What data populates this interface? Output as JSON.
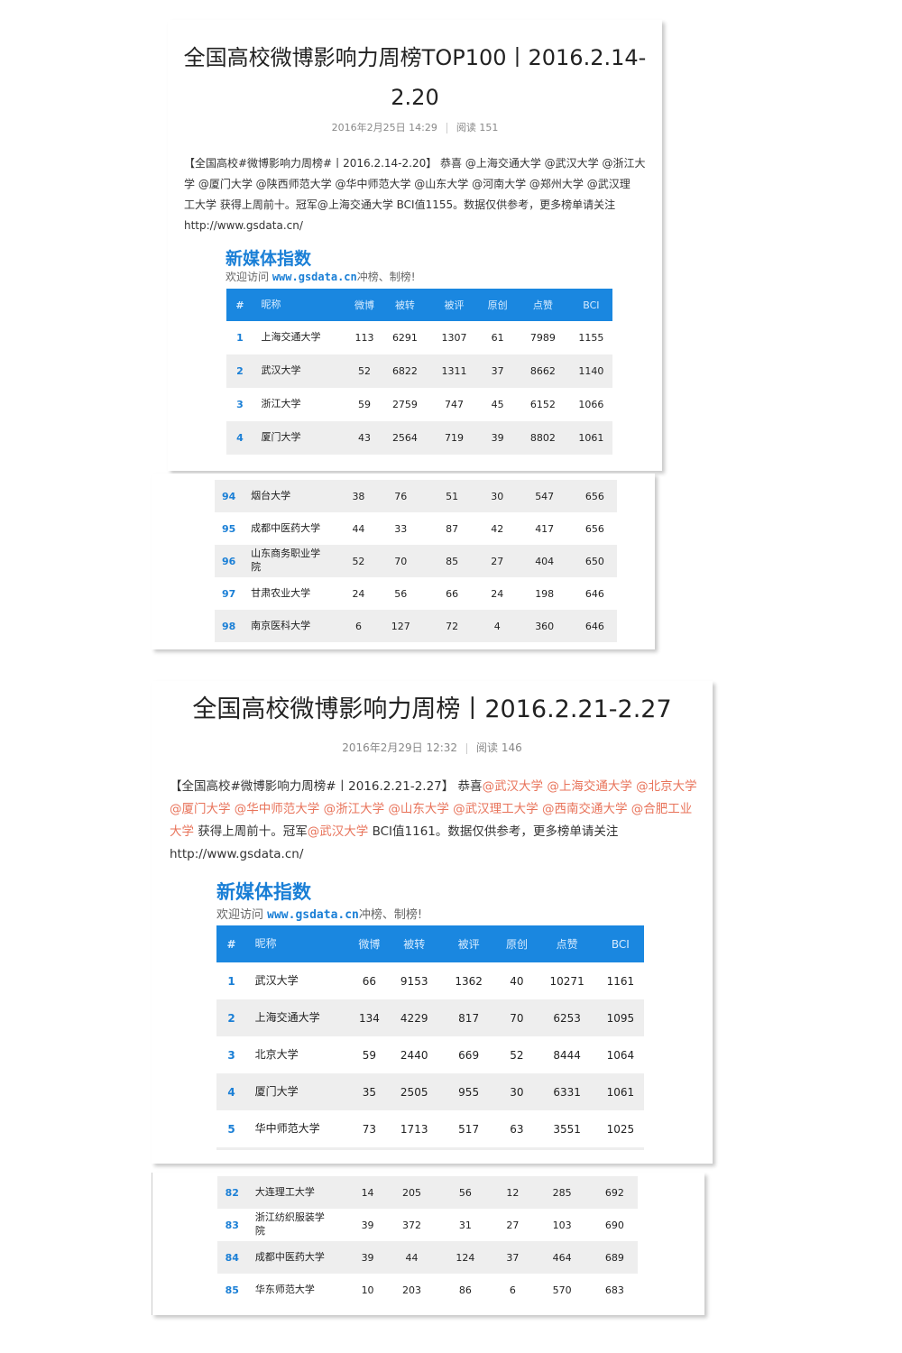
{
  "columns": [
    "#",
    "昵称",
    "微博",
    "被转",
    "被评",
    "原创",
    "点赞",
    "BCI"
  ],
  "post1": {
    "title_line1": "全国高校微博影响力周榜TOP100丨2016.2.14-",
    "title_line2": "2.20",
    "date": "2016年2月25日 14:29",
    "reads": "阅读 151",
    "para_lines": [
      "【全国高校#微博影响力周榜#丨2016.2.14-2.20】 恭喜 @上海交通大学 @武汉大学  @浙江大",
      "学 @厦门大学 @陕西师范大学 @华中师范大学 @山东大学 @河南大学 @郑州大学 @武汉理",
      "工大学 获得上周前十。冠军@上海交通大学 BCI值1155。数据仅供参考，更多榜单请关注",
      "http://www.gsdata.cn/"
    ],
    "logo": "新媒体指数",
    "sub_prefix": "欢迎访问 ",
    "sub_url": "www.gsdata.cn",
    "sub_suffix": "冲榜、制榜!",
    "rows": [
      [
        "1",
        "上海交通大学",
        "113",
        "6291",
        "1307",
        "61",
        "7989",
        "1155"
      ],
      [
        "2",
        "武汉大学",
        "52",
        "6822",
        "1311",
        "37",
        "8662",
        "1140"
      ],
      [
        "3",
        "浙江大学",
        "59",
        "2759",
        "747",
        "45",
        "6152",
        "1066"
      ],
      [
        "4",
        "厦门大学",
        "43",
        "2564",
        "719",
        "39",
        "8802",
        "1061"
      ]
    ],
    "tail_rows": [
      [
        "94",
        "烟台大学",
        "38",
        "76",
        "51",
        "30",
        "547",
        "656"
      ],
      [
        "95",
        "成都中医药大学",
        "44",
        "33",
        "87",
        "42",
        "417",
        "656"
      ],
      [
        "96",
        "山东商务职业学院",
        "52",
        "70",
        "85",
        "27",
        "404",
        "650"
      ],
      [
        "97",
        "甘肃农业大学",
        "24",
        "56",
        "66",
        "24",
        "198",
        "646"
      ],
      [
        "98",
        "南京医科大学",
        "6",
        "127",
        "72",
        "4",
        "360",
        "646"
      ]
    ]
  },
  "post2": {
    "title": "全国高校微博影响力周榜丨2016.2.21-2.27",
    "date": "2016年2月29日 12:32",
    "reads": "阅读 146",
    "para_segments": [
      {
        "t": "【全国高校#微博影响力周榜#丨2016.2.21-2.27】 恭喜",
        "h": false
      },
      {
        "t": "@武汉大学 @上海交通大学  @北京大学 @厦门大学 @华中师范大学 @浙江大学 @山东大学 @武汉理工大学 @西南交通大学 @合肥工业大学",
        "h": true
      },
      {
        "t": " 获得上周前十。冠军",
        "h": false
      },
      {
        "t": "@武汉大学",
        "h": true
      },
      {
        "t": " BCI值1161。数据仅供参考，更多榜单请关注 http://www.gsdata.cn/",
        "h": false
      }
    ],
    "logo": "新媒体指数",
    "sub_prefix": "欢迎访问 ",
    "sub_url": "www.gsdata.cn",
    "sub_suffix": "冲榜、制榜!",
    "rows": [
      [
        "1",
        "武汉大学",
        "66",
        "9153",
        "1362",
        "40",
        "10271",
        "1161"
      ],
      [
        "2",
        "上海交通大学",
        "134",
        "4229",
        "817",
        "70",
        "6253",
        "1095"
      ],
      [
        "3",
        "北京大学",
        "59",
        "2440",
        "669",
        "52",
        "8444",
        "1064"
      ],
      [
        "4",
        "厦门大学",
        "35",
        "2505",
        "955",
        "30",
        "6331",
        "1061"
      ],
      [
        "5",
        "华中师范大学",
        "73",
        "1713",
        "517",
        "63",
        "3551",
        "1025"
      ]
    ],
    "tail_rows": [
      [
        "82",
        "大连理工大学",
        "14",
        "205",
        "56",
        "12",
        "285",
        "692"
      ],
      [
        "83",
        "浙江纺织服装学院",
        "39",
        "372",
        "31",
        "27",
        "103",
        "690"
      ],
      [
        "84",
        "成都中医药大学",
        "39",
        "44",
        "124",
        "37",
        "464",
        "689"
      ],
      [
        "85",
        "华东师范大学",
        "10",
        "203",
        "86",
        "6",
        "570",
        "683"
      ]
    ]
  },
  "colors": {
    "accent": "#1a87e0",
    "highlight": "#e8735a"
  }
}
